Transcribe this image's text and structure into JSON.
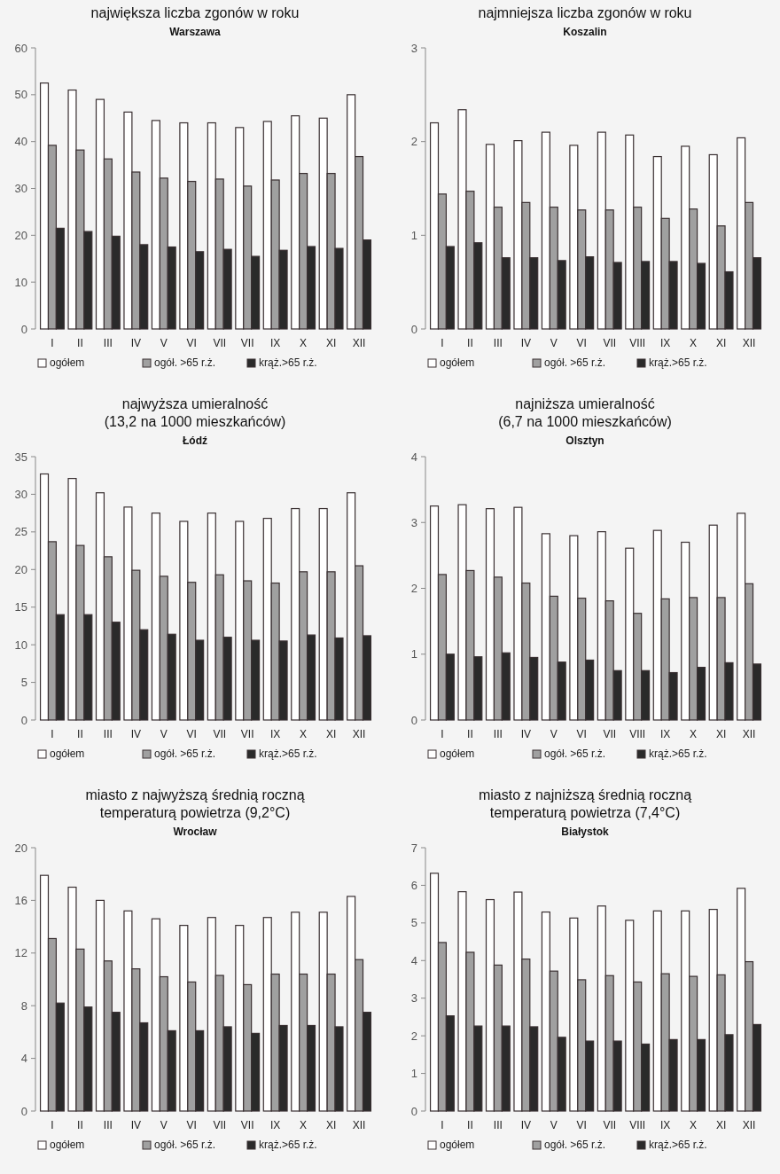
{
  "chart_data": [
    {
      "type": "bar",
      "title": "największa liczba zgonów w roku",
      "subtitle": "Warszawa",
      "categories": [
        "I",
        "II",
        "III",
        "IV",
        "V",
        "VI",
        "VII",
        "VII",
        "IX",
        "X",
        "XI",
        "XII"
      ],
      "ylim": [
        0,
        60
      ],
      "yticks": [
        0,
        10,
        20,
        30,
        40,
        50,
        60
      ],
      "legend": "bottom",
      "series": [
        {
          "name": "ogółem",
          "color": "#ffffff",
          "values": [
            52.5,
            51,
            49,
            46.3,
            44.5,
            44,
            44,
            43,
            44.3,
            45.5,
            45,
            50
          ]
        },
        {
          "name": "ogół. >65 r.ż.",
          "color": "#a0a0a0",
          "values": [
            39.2,
            38.2,
            36.3,
            33.5,
            32.2,
            31.5,
            32,
            30.5,
            31.8,
            33.2,
            33.2,
            36.8
          ]
        },
        {
          "name": "krąż.>65 r.ż.",
          "color": "#2a2a2a",
          "values": [
            21.5,
            20.8,
            19.8,
            18,
            17.5,
            16.5,
            17,
            15.5,
            16.8,
            17.6,
            17.2,
            19
          ]
        }
      ]
    },
    {
      "type": "bar",
      "title": "najmniejsza liczba zgonów w roku",
      "subtitle": "Koszalin",
      "categories": [
        "I",
        "II",
        "III",
        "IV",
        "V",
        "VI",
        "VII",
        "VIII",
        "IX",
        "X",
        "XI",
        "XII"
      ],
      "ylim": [
        0,
        3
      ],
      "yticks": [
        0,
        1,
        2,
        3
      ],
      "legend": "bottom",
      "series": [
        {
          "name": "ogółem",
          "color": "#ffffff",
          "values": [
            2.2,
            2.34,
            1.97,
            2.01,
            2.1,
            1.96,
            2.1,
            2.07,
            1.84,
            1.95,
            1.86,
            2.04
          ]
        },
        {
          "name": "ogół. >65 r.ż.",
          "color": "#a0a0a0",
          "values": [
            1.44,
            1.47,
            1.3,
            1.35,
            1.3,
            1.27,
            1.27,
            1.3,
            1.18,
            1.28,
            1.1,
            1.35
          ]
        },
        {
          "name": "krąż.>65 r.ż.",
          "color": "#2a2a2a",
          "values": [
            0.88,
            0.92,
            0.76,
            0.76,
            0.73,
            0.77,
            0.71,
            0.72,
            0.72,
            0.7,
            0.61,
            0.76
          ]
        }
      ]
    },
    {
      "type": "bar",
      "title": "najwyższa umieralność\n(13,2 na 1000 mieszkańców)",
      "subtitle": "Łódź",
      "categories": [
        "I",
        "II",
        "III",
        "IV",
        "V",
        "VI",
        "VII",
        "VII",
        "IX",
        "X",
        "XI",
        "XII"
      ],
      "ylim": [
        0,
        35
      ],
      "yticks": [
        0,
        5,
        10,
        15,
        20,
        25,
        30,
        35
      ],
      "legend": "bottom",
      "series": [
        {
          "name": "ogółem",
          "color": "#ffffff",
          "values": [
            32.7,
            32.1,
            30.2,
            28.3,
            27.5,
            26.4,
            27.5,
            26.4,
            26.8,
            28.1,
            28.1,
            30.2
          ]
        },
        {
          "name": "ogół. >65 r.ż.",
          "color": "#a0a0a0",
          "values": [
            23.7,
            23.2,
            21.7,
            19.9,
            19.1,
            18.3,
            19.3,
            18.5,
            18.2,
            19.7,
            19.7,
            20.5
          ]
        },
        {
          "name": "krąż.>65 r.ż.",
          "color": "#2a2a2a",
          "values": [
            14,
            14,
            13,
            12,
            11.4,
            10.6,
            11,
            10.6,
            10.5,
            11.3,
            10.9,
            11.2
          ]
        }
      ]
    },
    {
      "type": "bar",
      "title": "najniższa umieralność\n(6,7 na 1000 mieszkańców)",
      "subtitle": "Olsztyn",
      "categories": [
        "I",
        "II",
        "III",
        "IV",
        "V",
        "VI",
        "VII",
        "VIII",
        "IX",
        "X",
        "XI",
        "XII"
      ],
      "ylim": [
        0,
        4
      ],
      "yticks": [
        0,
        1,
        2,
        3,
        4
      ],
      "legend": "bottom",
      "series": [
        {
          "name": "ogółem",
          "color": "#ffffff",
          "values": [
            3.25,
            3.27,
            3.21,
            3.23,
            2.83,
            2.8,
            2.86,
            2.61,
            2.88,
            2.7,
            2.96,
            3.14
          ]
        },
        {
          "name": "ogół. >65 r.ż.",
          "color": "#a0a0a0",
          "values": [
            2.21,
            2.27,
            2.17,
            2.08,
            1.88,
            1.85,
            1.81,
            1.62,
            1.84,
            1.86,
            1.86,
            2.07
          ]
        },
        {
          "name": "krąż.>65 r.ż.",
          "color": "#2a2a2a",
          "values": [
            1,
            0.96,
            1.02,
            0.95,
            0.88,
            0.91,
            0.75,
            0.75,
            0.72,
            0.8,
            0.87,
            0.85
          ]
        }
      ]
    },
    {
      "type": "bar",
      "title": "miasto z najwyższą średnią roczną\ntemperaturą powietrza (9,2°C)",
      "subtitle": "Wrocław",
      "categories": [
        "I",
        "II",
        "III",
        "IV",
        "V",
        "VI",
        "VII",
        "VII",
        "IX",
        "X",
        "XI",
        "XII"
      ],
      "ylim": [
        0,
        20
      ],
      "yticks": [
        0,
        4,
        8,
        12,
        16,
        20
      ],
      "legend": "bottom",
      "series": [
        {
          "name": "ogółem",
          "color": "#ffffff",
          "values": [
            17.9,
            17,
            16,
            15.2,
            14.6,
            14.1,
            14.7,
            14.1,
            14.7,
            15.1,
            15.1,
            16.3
          ]
        },
        {
          "name": "ogół. >65 r.ż.",
          "color": "#a0a0a0",
          "values": [
            13.1,
            12.3,
            11.4,
            10.8,
            10.2,
            9.8,
            10.3,
            9.6,
            10.4,
            10.4,
            10.4,
            11.5
          ]
        },
        {
          "name": "krąż.>65 r.ż.",
          "color": "#2a2a2a",
          "values": [
            8.2,
            7.9,
            7.5,
            6.7,
            6.1,
            6.1,
            6.4,
            5.9,
            6.5,
            6.5,
            6.4,
            7.5
          ]
        }
      ]
    },
    {
      "type": "bar",
      "title": "miasto z najniższą średnią roczną\ntemperaturą powietrza (7,4°C)",
      "subtitle": "Białystok",
      "categories": [
        "I",
        "II",
        "III",
        "IV",
        "V",
        "VI",
        "VII",
        "VIII",
        "IX",
        "X",
        "XI",
        "XII"
      ],
      "ylim": [
        0,
        7
      ],
      "yticks": [
        0,
        1,
        2,
        3,
        4,
        5,
        6,
        7
      ],
      "legend": "bottom",
      "series": [
        {
          "name": "ogółem",
          "color": "#ffffff",
          "values": [
            6.32,
            5.83,
            5.62,
            5.82,
            5.29,
            5.13,
            5.45,
            5.07,
            5.32,
            5.32,
            5.36,
            5.92
          ]
        },
        {
          "name": "ogół. >65 r.ż.",
          "color": "#a0a0a0",
          "values": [
            4.48,
            4.22,
            3.88,
            4.04,
            3.72,
            3.49,
            3.6,
            3.43,
            3.65,
            3.58,
            3.62,
            3.97
          ]
        },
        {
          "name": "krąż.>65 r.ż.",
          "color": "#2a2a2a",
          "values": [
            2.53,
            2.26,
            2.26,
            2.24,
            1.96,
            1.86,
            1.86,
            1.78,
            1.9,
            1.9,
            2.03,
            2.3
          ]
        }
      ]
    }
  ]
}
